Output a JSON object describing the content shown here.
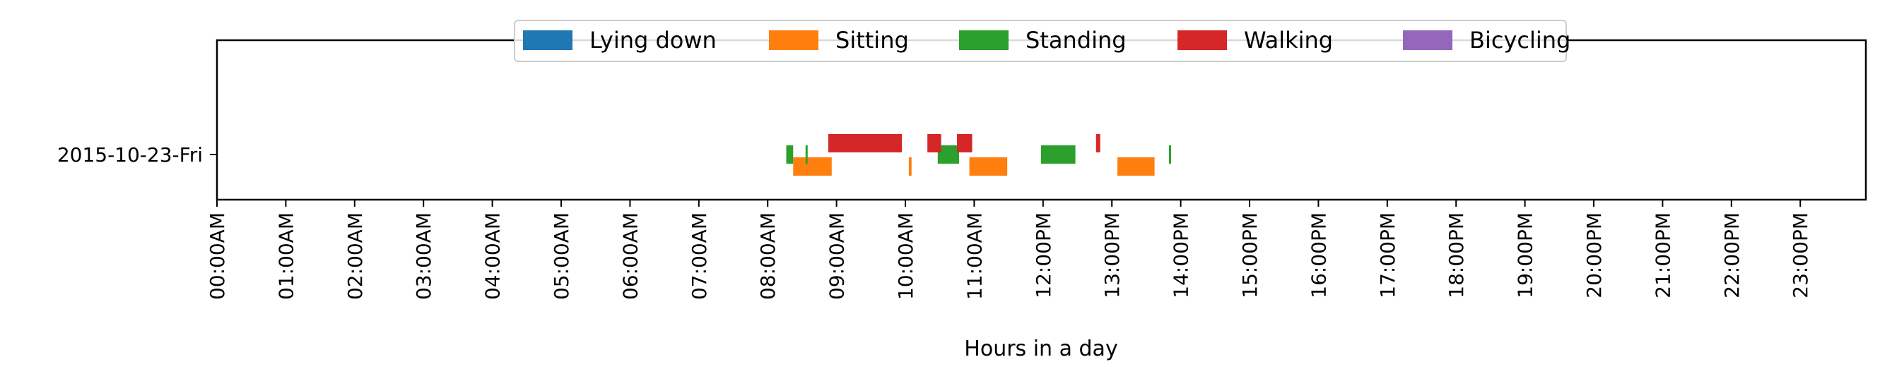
{
  "chart_data": {
    "type": "bar",
    "orientation": "horizontal",
    "title": "",
    "xlabel": "Hours in a day",
    "ylabel": "",
    "xlim": [
      0,
      24
    ],
    "x_ticks": [
      0,
      1,
      2,
      3,
      4,
      5,
      6,
      7,
      8,
      9,
      10,
      11,
      12,
      13,
      14,
      15,
      16,
      17,
      18,
      19,
      20,
      21,
      22,
      23
    ],
    "x_tick_labels": [
      "00:00AM",
      "01:00AM",
      "02:00AM",
      "03:00AM",
      "04:00AM",
      "05:00AM",
      "06:00AM",
      "07:00AM",
      "08:00AM",
      "09:00AM",
      "10:00AM",
      "11:00AM",
      "12:00PM",
      "13:00PM",
      "14:00PM",
      "15:00PM",
      "16:00PM",
      "17:00PM",
      "18:00PM",
      "19:00PM",
      "20:00PM",
      "21:00PM",
      "22:00PM",
      "23:00PM"
    ],
    "categories": [
      "2015-10-23-Fri"
    ],
    "grid": false,
    "legend_position": "top-center",
    "series": [
      {
        "name": "Lying down",
        "color": "#1f77b4",
        "lane": "none",
        "segments": []
      },
      {
        "name": "Sitting",
        "color": "#ff7f0e",
        "lane": "lower",
        "segments": [
          [
            8.37,
            8.93
          ],
          [
            10.05,
            10.09
          ],
          [
            10.93,
            11.48
          ],
          [
            13.08,
            13.62
          ]
        ]
      },
      {
        "name": "Standing",
        "color": "#2ca02c",
        "lane": "middle",
        "segments": [
          [
            8.27,
            8.37
          ],
          [
            8.55,
            8.58
          ],
          [
            10.47,
            10.78
          ],
          [
            11.97,
            12.47
          ],
          [
            13.83,
            13.86
          ]
        ]
      },
      {
        "name": "Walking",
        "color": "#d62728",
        "lane": "upper",
        "segments": [
          [
            8.88,
            9.95
          ],
          [
            10.32,
            10.52
          ],
          [
            10.75,
            10.97
          ],
          [
            12.77,
            12.83
          ]
        ]
      },
      {
        "name": "Bicycling",
        "color": "#9467bd",
        "lane": "none",
        "segments": []
      }
    ]
  }
}
